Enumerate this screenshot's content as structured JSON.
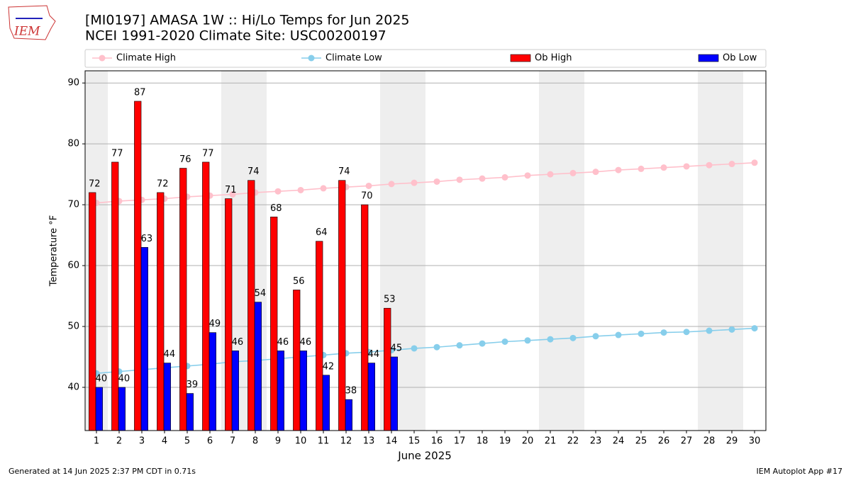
{
  "logo": "IEM",
  "footer": {
    "left": "Generated at 14 Jun 2025 2:37 PM CDT in 0.71s",
    "right": "IEM Autoplot App #17"
  },
  "chart_data": {
    "type": "bar",
    "title": "[MI0197] AMASA 1W :: Hi/Lo Temps for Jun 2025",
    "subtitle": "NCEI 1991-2020 Climate Site: USC00200197",
    "x_label": "June 2025",
    "y_label": "Temperature °F",
    "x": [
      1,
      2,
      3,
      4,
      5,
      6,
      7,
      8,
      9,
      10,
      11,
      12,
      13,
      14,
      15,
      16,
      17,
      18,
      19,
      20,
      21,
      22,
      23,
      24,
      25,
      26,
      27,
      28,
      29,
      30
    ],
    "xlim": [
      0.5,
      30.5
    ],
    "xticks": [
      1,
      2,
      3,
      4,
      5,
      6,
      7,
      8,
      9,
      10,
      11,
      12,
      13,
      14,
      15,
      16,
      17,
      18,
      19,
      20,
      21,
      22,
      23,
      24,
      25,
      26,
      27,
      28,
      29,
      30
    ],
    "ylim": [
      32.9,
      92
    ],
    "yticks": [
      40,
      50,
      60,
      70,
      80,
      90
    ],
    "grid": true,
    "series": [
      {
        "name": "Climate High",
        "kind": "line",
        "color": "#ffc0cb",
        "values": [
          70.3,
          70.6,
          70.8,
          71.0,
          71.3,
          71.5,
          71.7,
          72.0,
          72.2,
          72.4,
          72.7,
          72.9,
          73.1,
          73.4,
          73.6,
          73.8,
          74.1,
          74.3,
          74.5,
          74.8,
          75.0,
          75.2,
          75.4,
          75.7,
          75.9,
          76.1,
          76.3,
          76.5,
          76.7,
          76.9
        ]
      },
      {
        "name": "Climate Low",
        "kind": "line",
        "color": "#87ceeb",
        "values": [
          42.3,
          42.6,
          42.9,
          43.2,
          43.5,
          43.8,
          44.2,
          44.4,
          44.7,
          45.0,
          45.3,
          45.6,
          45.8,
          46.1,
          46.4,
          46.6,
          46.9,
          47.2,
          47.5,
          47.7,
          47.9,
          48.1,
          48.4,
          48.6,
          48.8,
          49.0,
          49.1,
          49.3,
          49.5,
          49.7
        ]
      },
      {
        "name": "Ob High",
        "kind": "bar",
        "color": "#ff0000",
        "values": [
          72,
          77,
          87,
          72,
          76,
          77,
          71,
          74,
          68,
          56,
          64,
          74,
          70,
          53,
          null,
          null,
          null,
          null,
          null,
          null,
          null,
          null,
          null,
          null,
          null,
          null,
          null,
          null,
          null,
          null
        ]
      },
      {
        "name": "Ob Low",
        "kind": "bar",
        "color": "#0000ff",
        "values": [
          40,
          40,
          63,
          44,
          39,
          49,
          46,
          54,
          46,
          46,
          42,
          38,
          44,
          45,
          null,
          null,
          null,
          null,
          null,
          null,
          null,
          null,
          null,
          null,
          null,
          null,
          null,
          null,
          null,
          null
        ]
      }
    ]
  }
}
